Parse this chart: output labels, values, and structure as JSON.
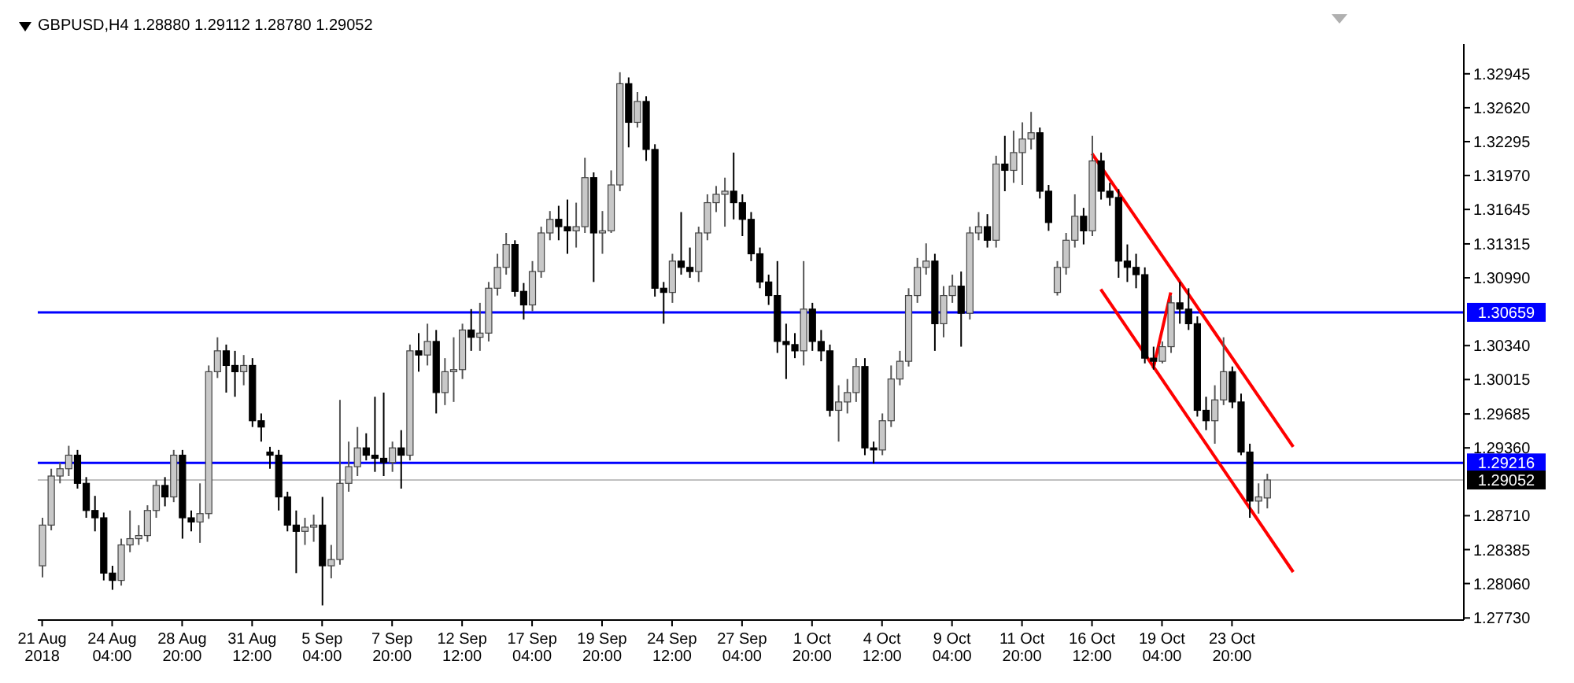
{
  "chart_data": {
    "type": "candlestick",
    "title": "GBPUSD,H4  1.28880 1.29112 1.28780 1.29052",
    "categories": [
      "21 Aug 2018",
      null,
      null,
      null,
      null,
      null,
      null,
      null,
      "24 Aug 04:00",
      null,
      null,
      null,
      null,
      null,
      null,
      null,
      "28 Aug 20:00",
      null,
      null,
      null,
      null,
      null,
      null,
      null,
      "31 Aug 12:00",
      null,
      null,
      null,
      null,
      null,
      null,
      null,
      "5 Sep 04:00",
      null,
      null,
      null,
      null,
      null,
      null,
      null,
      "7 Sep 20:00",
      null,
      null,
      null,
      null,
      null,
      null,
      null,
      "12 Sep 12:00",
      null,
      null,
      null,
      null,
      null,
      null,
      null,
      "17 Sep 04:00",
      null,
      null,
      null,
      null,
      null,
      null,
      null,
      "19 Sep 20:00",
      null,
      null,
      null,
      null,
      null,
      null,
      null,
      "24 Sep 12:00",
      null,
      null,
      null,
      null,
      null,
      null,
      null,
      "27 Sep 04:00",
      null,
      null,
      null,
      null,
      null,
      null,
      null,
      "1 Oct 20:00",
      null,
      null,
      null,
      null,
      null,
      null,
      null,
      "4 Oct 12:00",
      null,
      null,
      null,
      null,
      null,
      null,
      null,
      "9 Oct 04:00",
      null,
      null,
      null,
      null,
      null,
      null,
      null,
      "11 Oct 20:00",
      null,
      null,
      null,
      null,
      null,
      null,
      null,
      "16 Oct 12:00",
      null,
      null,
      null,
      null,
      null,
      null,
      null,
      "19 Oct 04:00",
      null,
      null,
      null,
      null,
      null,
      null,
      null,
      "23 Oct 20:00",
      null,
      null,
      null,
      null,
      null,
      null,
      null,
      null,
      null,
      null,
      null,
      null,
      null,
      null,
      null,
      null,
      null,
      null,
      null,
      null,
      null,
      null,
      null,
      null,
      null,
      null
    ],
    "ohlc": [
      [
        1.2823,
        1.2869,
        1.2812,
        1.2862
      ],
      [
        1.2862,
        1.2916,
        1.2857,
        1.2909
      ],
      [
        1.2909,
        1.2922,
        1.2902,
        1.2916
      ],
      [
        1.2916,
        1.2938,
        1.2909,
        1.2929
      ],
      [
        1.2929,
        1.2934,
        1.2897,
        1.2902
      ],
      [
        1.2902,
        1.2908,
        1.2869,
        1.2876
      ],
      [
        1.2876,
        1.289,
        1.2856,
        1.2869
      ],
      [
        1.2869,
        1.2874,
        1.2809,
        1.2816
      ],
      [
        1.2816,
        1.2823,
        1.28,
        1.2809
      ],
      [
        1.2809,
        1.2849,
        1.2804,
        1.2843
      ],
      [
        1.2843,
        1.2876,
        1.2836,
        1.2849
      ],
      [
        1.2849,
        1.2862,
        1.2843,
        1.2852
      ],
      [
        1.2852,
        1.2881,
        1.2846,
        1.2876
      ],
      [
        1.2876,
        1.2905,
        1.2869,
        1.29
      ],
      [
        1.29,
        1.2908,
        1.288,
        1.2889
      ],
      [
        1.2889,
        1.2934,
        1.2884,
        1.2929
      ],
      [
        1.2929,
        1.2934,
        1.2849,
        1.2869
      ],
      [
        1.2869,
        1.2876,
        1.2856,
        1.2865
      ],
      [
        1.2865,
        1.2902,
        1.2845,
        1.2873
      ],
      [
        1.2873,
        1.3015,
        1.2868,
        1.3009
      ],
      [
        1.3009,
        1.3042,
        1.3003,
        1.3029
      ],
      [
        1.3029,
        1.3035,
        1.2989,
        1.3015
      ],
      [
        1.3015,
        1.3029,
        1.2985,
        1.3009
      ],
      [
        1.3009,
        1.3025,
        1.2996,
        1.3015
      ],
      [
        1.3015,
        1.3022,
        1.2956,
        1.2962
      ],
      [
        1.2962,
        1.2969,
        1.2942,
        1.2956
      ],
      [
        1.2932,
        1.2937,
        1.2916,
        1.2929
      ],
      [
        1.2929,
        1.2934,
        1.2876,
        1.2889
      ],
      [
        1.2889,
        1.2894,
        1.2856,
        1.2862
      ],
      [
        1.2862,
        1.2876,
        1.2816,
        1.2856
      ],
      [
        1.2856,
        1.2869,
        1.2843,
        1.286
      ],
      [
        1.286,
        1.2872,
        1.2846,
        1.2862
      ],
      [
        1.2862,
        1.2889,
        1.2785,
        1.2823
      ],
      [
        1.2823,
        1.2843,
        1.2811,
        1.2829
      ],
      [
        1.2829,
        1.2982,
        1.2824,
        1.2902
      ],
      [
        1.2902,
        1.2942,
        1.2894,
        1.2918
      ],
      [
        1.2918,
        1.2956,
        1.2909,
        1.2936
      ],
      [
        1.2936,
        1.295,
        1.2924,
        1.2929
      ],
      [
        1.2929,
        1.2985,
        1.2913,
        1.2926
      ],
      [
        1.2926,
        1.2989,
        1.2909,
        1.2922
      ],
      [
        1.2922,
        1.2942,
        1.2913,
        1.2936
      ],
      [
        1.2936,
        1.2953,
        1.2897,
        1.2929
      ],
      [
        1.2929,
        1.3035,
        1.2924,
        1.3029
      ],
      [
        1.3029,
        1.3046,
        1.3009,
        1.3025
      ],
      [
        1.3025,
        1.3055,
        1.3015,
        1.3038
      ],
      [
        1.3038,
        1.3049,
        1.2969,
        1.2989
      ],
      [
        1.2989,
        1.3022,
        1.2977,
        1.3009
      ],
      [
        1.3009,
        1.3042,
        1.298,
        1.3011
      ],
      [
        1.3011,
        1.3055,
        1.3002,
        1.3049
      ],
      [
        1.3049,
        1.3069,
        1.3029,
        1.3042
      ],
      [
        1.3042,
        1.3075,
        1.3029,
        1.3046
      ],
      [
        1.3046,
        1.3095,
        1.3038,
        1.3089
      ],
      [
        1.3089,
        1.3122,
        1.3082,
        1.3109
      ],
      [
        1.3109,
        1.3142,
        1.3102,
        1.3131
      ],
      [
        1.3131,
        1.3135,
        1.3081,
        1.3086
      ],
      [
        1.3086,
        1.3094,
        1.3059,
        1.3073
      ],
      [
        1.3073,
        1.3115,
        1.3067,
        1.3105
      ],
      [
        1.3105,
        1.3148,
        1.3099,
        1.3142
      ],
      [
        1.3142,
        1.3163,
        1.3135,
        1.3155
      ],
      [
        1.3155,
        1.3168,
        1.3135,
        1.3148
      ],
      [
        1.3148,
        1.3174,
        1.3122,
        1.3144
      ],
      [
        1.3144,
        1.3171,
        1.3128,
        1.3148
      ],
      [
        1.3148,
        1.3214,
        1.3142,
        1.3195
      ],
      [
        1.3195,
        1.32,
        1.3095,
        1.3142
      ],
      [
        1.3142,
        1.3163,
        1.3122,
        1.3144
      ],
      [
        1.3144,
        1.3202,
        1.3142,
        1.3188
      ],
      [
        1.3188,
        1.3296,
        1.3182,
        1.3285
      ],
      [
        1.3285,
        1.3291,
        1.3224,
        1.3248
      ],
      [
        1.3248,
        1.3277,
        1.3243,
        1.3268
      ],
      [
        1.3268,
        1.3273,
        1.3211,
        1.3222
      ],
      [
        1.3222,
        1.3227,
        1.3081,
        1.3089
      ],
      [
        1.3089,
        1.3095,
        1.3055,
        1.3085
      ],
      [
        1.3085,
        1.3122,
        1.3075,
        1.3115
      ],
      [
        1.3115,
        1.3162,
        1.3102,
        1.3109
      ],
      [
        1.3109,
        1.3128,
        1.3099,
        1.3105
      ],
      [
        1.3105,
        1.3148,
        1.3095,
        1.3142
      ],
      [
        1.3142,
        1.3179,
        1.3135,
        1.3171
      ],
      [
        1.3171,
        1.3187,
        1.3162,
        1.3179
      ],
      [
        1.3179,
        1.3195,
        1.3148,
        1.3182
      ],
      [
        1.3182,
        1.3219,
        1.3155,
        1.3171
      ],
      [
        1.3171,
        1.3179,
        1.3139,
        1.3155
      ],
      [
        1.3155,
        1.3162,
        1.3115,
        1.3122
      ],
      [
        1.3122,
        1.3128,
        1.3089,
        1.3095
      ],
      [
        1.3095,
        1.3102,
        1.3073,
        1.3082
      ],
      [
        1.3082,
        1.3115,
        1.3027,
        1.3038
      ],
      [
        1.3038,
        1.3055,
        1.3002,
        1.3035
      ],
      [
        1.3035,
        1.3046,
        1.3022,
        1.3029
      ],
      [
        1.3029,
        1.3115,
        1.3015,
        1.3069
      ],
      [
        1.3069,
        1.3075,
        1.3029,
        1.3038
      ],
      [
        1.3038,
        1.3049,
        1.3019,
        1.3029
      ],
      [
        1.3029,
        1.3035,
        1.2966,
        1.2972
      ],
      [
        1.2972,
        1.2996,
        1.2942,
        1.298
      ],
      [
        1.298,
        1.3002,
        1.2969,
        1.2989
      ],
      [
        1.2989,
        1.3022,
        1.298,
        1.3014
      ],
      [
        1.3014,
        1.3022,
        1.2929,
        1.2936
      ],
      [
        1.2936,
        1.2942,
        1.2921,
        1.2934
      ],
      [
        1.2934,
        1.2969,
        1.2929,
        1.2962
      ],
      [
        1.2962,
        1.3015,
        1.2956,
        1.3002
      ],
      [
        1.3002,
        1.3029,
        1.2996,
        1.3019
      ],
      [
        1.3019,
        1.3089,
        1.3014,
        1.3082
      ],
      [
        1.3082,
        1.3118,
        1.3075,
        1.3109
      ],
      [
        1.3109,
        1.3132,
        1.3102,
        1.3115
      ],
      [
        1.3115,
        1.3122,
        1.3029,
        1.3055
      ],
      [
        1.3055,
        1.3091,
        1.3042,
        1.3082
      ],
      [
        1.3082,
        1.3102,
        1.3075,
        1.3091
      ],
      [
        1.3091,
        1.3105,
        1.3033,
        1.3065
      ],
      [
        1.3065,
        1.3148,
        1.3059,
        1.3142
      ],
      [
        1.3142,
        1.3162,
        1.3135,
        1.3148
      ],
      [
        1.3148,
        1.316,
        1.3128,
        1.3135
      ],
      [
        1.3135,
        1.3216,
        1.3128,
        1.3208
      ],
      [
        1.3208,
        1.3235,
        1.3182,
        1.3202
      ],
      [
        1.3202,
        1.324,
        1.319,
        1.3219
      ],
      [
        1.3219,
        1.3248,
        1.3188,
        1.3232
      ],
      [
        1.3232,
        1.3258,
        1.3222,
        1.3238
      ],
      [
        1.3238,
        1.3243,
        1.3175,
        1.3182
      ],
      [
        1.3182,
        1.3188,
        1.3144,
        1.3152
      ],
      [
        1.3085,
        1.3115,
        1.3082,
        1.3109
      ],
      [
        1.3109,
        1.3142,
        1.3102,
        1.3135
      ],
      [
        1.3135,
        1.3179,
        1.3128,
        1.3158
      ],
      [
        1.3158,
        1.3166,
        1.3131,
        1.3144
      ],
      [
        1.3144,
        1.3235,
        1.3139,
        1.3211
      ],
      [
        1.3211,
        1.3219,
        1.3174,
        1.3182
      ],
      [
        1.3182,
        1.319,
        1.3168,
        1.3176
      ],
      [
        1.3176,
        1.3184,
        1.3099,
        1.3115
      ],
      [
        1.3115,
        1.3131,
        1.3095,
        1.3109
      ],
      [
        1.3109,
        1.3122,
        1.3089,
        1.3102
      ],
      [
        1.3102,
        1.3109,
        1.3017,
        1.3022
      ],
      [
        1.3022,
        1.3033,
        1.3011,
        1.3019
      ],
      [
        1.3019,
        1.3038,
        1.3017,
        1.3033
      ],
      [
        1.3033,
        1.3082,
        1.3027,
        1.3075
      ],
      [
        1.3075,
        1.3095,
        1.3055,
        1.3069
      ],
      [
        1.3069,
        1.3089,
        1.3049,
        1.3055
      ],
      [
        1.3055,
        1.3062,
        1.2966,
        1.2972
      ],
      [
        1.2972,
        1.2985,
        1.2953,
        1.2962
      ],
      [
        1.2962,
        1.2996,
        1.294,
        1.2982
      ],
      [
        1.2982,
        1.3042,
        1.2977,
        1.3009
      ],
      [
        1.3009,
        1.3014,
        1.2974,
        1.298
      ],
      [
        1.298,
        1.2988,
        1.2929,
        1.2932
      ],
      [
        1.2932,
        1.294,
        1.2869,
        1.2885
      ],
      [
        1.2885,
        1.2902,
        1.2873,
        1.2889
      ],
      [
        1.2888,
        1.29112,
        1.2878,
        1.29052
      ],
      null,
      null,
      null,
      null,
      null,
      null,
      null,
      null,
      null,
      null,
      null,
      null,
      null,
      null,
      null,
      null,
      null,
      null,
      null,
      null,
      null,
      null
    ],
    "series": [
      {
        "type": "line",
        "color": "#ff0000",
        "values": [
          null,
          null,
          null,
          null,
          null,
          null,
          null,
          null,
          null,
          null,
          null,
          null,
          null,
          null,
          null,
          null,
          null,
          null,
          null,
          null,
          null,
          null,
          null,
          null,
          null,
          null,
          null,
          null,
          null,
          null,
          null,
          null,
          null,
          null,
          null,
          null,
          null,
          null,
          null,
          null,
          null,
          null,
          null,
          null,
          null,
          null,
          null,
          null,
          null,
          null,
          null,
          null,
          null,
          null,
          null,
          null,
          null,
          null,
          null,
          null,
          null,
          null,
          null,
          null,
          null,
          null,
          null,
          null,
          null,
          null,
          null,
          null,
          null,
          null,
          null,
          null,
          null,
          null,
          null,
          null,
          null,
          null,
          null,
          null,
          null,
          null,
          null,
          null,
          null,
          null,
          null,
          null,
          null,
          null,
          null,
          null,
          null,
          null,
          null,
          null,
          null,
          null,
          null,
          null,
          null,
          null,
          null,
          null,
          null,
          null,
          null,
          null,
          null,
          null,
          null,
          null,
          null,
          null,
          null,
          null,
          1.3218,
          null,
          null,
          null,
          null,
          null,
          null,
          null,
          null,
          null,
          null,
          null,
          null,
          null,
          null,
          null,
          null,
          null,
          null,
          null,
          null,
          null,
          null,
          1.2937,
          null,
          null,
          null,
          null,
          null,
          null,
          null,
          null,
          null,
          null,
          null,
          null,
          null,
          null,
          null,
          null,
          null,
          null,
          null
        ]
      },
      {
        "type": "line",
        "color": "#ff0000",
        "values": [
          null,
          null,
          null,
          null,
          null,
          null,
          null,
          null,
          null,
          null,
          null,
          null,
          null,
          null,
          null,
          null,
          null,
          null,
          null,
          null,
          null,
          null,
          null,
          null,
          null,
          null,
          null,
          null,
          null,
          null,
          null,
          null,
          null,
          null,
          null,
          null,
          null,
          null,
          null,
          null,
          null,
          null,
          null,
          null,
          null,
          null,
          null,
          null,
          null,
          null,
          null,
          null,
          null,
          null,
          null,
          null,
          null,
          null,
          null,
          null,
          null,
          null,
          null,
          null,
          null,
          null,
          null,
          null,
          null,
          null,
          null,
          null,
          null,
          null,
          null,
          null,
          null,
          null,
          null,
          null,
          null,
          null,
          null,
          null,
          null,
          null,
          null,
          null,
          null,
          null,
          null,
          null,
          null,
          null,
          null,
          null,
          null,
          null,
          null,
          null,
          null,
          null,
          null,
          null,
          null,
          null,
          null,
          null,
          null,
          null,
          null,
          null,
          null,
          null,
          null,
          null,
          null,
          null,
          null,
          null,
          null,
          1.3088,
          null,
          null,
          null,
          null,
          null,
          null,
          null,
          null,
          null,
          null,
          null,
          null,
          null,
          null,
          null,
          null,
          null,
          null,
          null,
          null,
          null,
          1.2817,
          null,
          null,
          null,
          null,
          null,
          null,
          null,
          null,
          null,
          null,
          null,
          null,
          null,
          null,
          null,
          null,
          null,
          null,
          null
        ]
      },
      {
        "type": "line",
        "color": "#ff0000",
        "values": [
          null,
          null,
          null,
          null,
          null,
          null,
          null,
          null,
          null,
          null,
          null,
          null,
          null,
          null,
          null,
          null,
          null,
          null,
          null,
          null,
          null,
          null,
          null,
          null,
          null,
          null,
          null,
          null,
          null,
          null,
          null,
          null,
          null,
          null,
          null,
          null,
          null,
          null,
          null,
          null,
          null,
          null,
          null,
          null,
          null,
          null,
          null,
          null,
          null,
          null,
          null,
          null,
          null,
          null,
          null,
          null,
          null,
          null,
          null,
          null,
          null,
          null,
          null,
          null,
          null,
          null,
          null,
          null,
          null,
          null,
          null,
          null,
          null,
          null,
          null,
          null,
          null,
          null,
          null,
          null,
          null,
          null,
          null,
          null,
          null,
          null,
          null,
          null,
          null,
          null,
          null,
          null,
          null,
          null,
          null,
          null,
          null,
          null,
          null,
          null,
          null,
          null,
          null,
          null,
          null,
          null,
          null,
          null,
          null,
          null,
          null,
          null,
          null,
          null,
          null,
          null,
          null,
          null,
          null,
          null,
          null,
          null,
          null,
          null,
          null,
          null,
          null,
          1.3012,
          null,
          1.3085,
          null,
          null,
          null,
          null,
          null,
          null,
          null,
          null,
          null,
          null,
          null,
          null,
          null,
          null,
          null,
          null,
          null,
          null,
          null,
          null,
          null,
          null,
          null,
          null,
          null,
          null,
          null,
          null,
          null,
          null,
          null,
          null,
          null
        ]
      }
    ],
    "ylim": [
      1.2771,
      1.3323
    ],
    "yticks": [
      1.32945,
      {
        "value": 1.3262,
        "label": "1.32620"
      },
      1.32295,
      {
        "value": 1.3197,
        "label": "1.31970"
      },
      1.31645,
      1.31315,
      {
        "value": 1.3099,
        "label": "1.30990"
      },
      {
        "value": 1.3034,
        "label": "1.30340"
      },
      1.30015,
      1.29685,
      {
        "value": 1.2936,
        "label": "1.29360"
      },
      {
        "value": 1.2871,
        "label": "1.28710"
      },
      1.28385,
      {
        "value": 1.2806,
        "label": "1.28060"
      },
      {
        "value": 1.2773,
        "label": "1.27730"
      }
    ],
    "ref_lines": [
      {
        "axis": "y",
        "value": 1.30659,
        "label": "1.30659",
        "color": "#0000ff"
      },
      {
        "axis": "y",
        "value": 1.29216,
        "label": "1.29216",
        "color": "#0000ff"
      },
      {
        "axis": "y",
        "value": 1.29052,
        "label": "1.29052",
        "color": "#c0c0c0"
      }
    ]
  }
}
